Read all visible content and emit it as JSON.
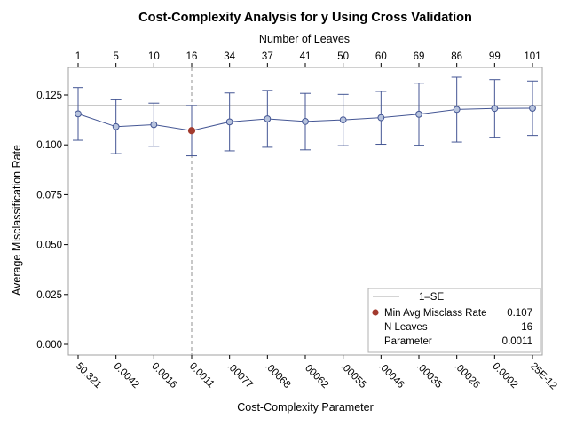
{
  "chart_data": {
    "type": "line",
    "title": "Cost-Complexity Analysis for y Using Cross Validation",
    "xlabel": "Cost-Complexity Parameter",
    "ylabel": "Average Misclassification Rate",
    "x2label": "Number of Leaves",
    "categories": [
      "50.321",
      "0.0042",
      "0.0016",
      "0.0011",
      ".00077",
      ".00068",
      ".00062",
      ".00055",
      ".00046",
      ".00035",
      ".00026",
      "0.0002",
      "25E-12"
    ],
    "leaves": [
      "1",
      "5",
      "10",
      "16",
      "34",
      "37",
      "41",
      "50",
      "60",
      "69",
      "86",
      "99",
      "101"
    ],
    "values": [
      0.1155,
      0.1091,
      0.1101,
      0.1071,
      0.1115,
      0.113,
      0.1117,
      0.1125,
      0.1136,
      0.1153,
      0.1177,
      0.1182,
      0.1183
    ],
    "lower": [
      0.1023,
      0.0956,
      0.0993,
      0.0945,
      0.097,
      0.0988,
      0.0975,
      0.0996,
      0.1003,
      0.0998,
      0.1014,
      0.1038,
      0.1047
    ],
    "upper": [
      0.1287,
      0.1226,
      0.1209,
      0.1197,
      0.126,
      0.1273,
      0.1258,
      0.1253,
      0.1268,
      0.1309,
      0.1339,
      0.1327,
      0.132
    ],
    "one_se": 0.1197,
    "min_index": 3,
    "ylim": [
      0,
      0.135
    ],
    "yticks": [
      "0.000",
      "0.025",
      "0.050",
      "0.075",
      "0.100",
      "0.125"
    ],
    "yticks_values": [
      0,
      0.025,
      0.05,
      0.075,
      0.1,
      0.125
    ],
    "grid": false,
    "legend_position": "bottom-right",
    "legend": {
      "one_se_label": "1–SE",
      "min_label": "Min Avg Misclass Rate",
      "min_value": "0.107",
      "nleaves_label": "N Leaves",
      "nleaves_value": "16",
      "param_label": "Parameter",
      "param_value": "0.0011"
    },
    "colors": {
      "line": "#445694",
      "marker_fill": "#b8c4de",
      "min_marker": "#a23a2e",
      "one_se_line": "#a8a8a8",
      "ref_line": "#909090",
      "frame": "#a0a0a0"
    }
  }
}
